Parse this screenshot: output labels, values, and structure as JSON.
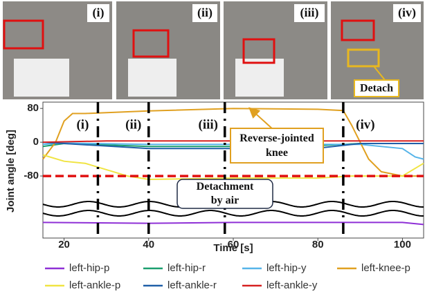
{
  "photos": {
    "labels": [
      "(i)",
      "(ii)",
      "(iii)",
      "(iv)"
    ],
    "callout": "Detach"
  },
  "chart_data": {
    "type": "line",
    "xlabel": "Time [s]",
    "ylabel": "Joint angle [deg]",
    "xlim": [
      15,
      105
    ],
    "ylim": [
      -227,
      95
    ],
    "xticks": [
      20,
      40,
      60,
      80,
      100
    ],
    "yticks": [
      80,
      0,
      -80
    ],
    "threshold": -80,
    "phase_markers": {
      "x": [
        28,
        40,
        58,
        86
      ],
      "labels": [
        "(i)",
        "(ii)",
        "(iii)",
        "(iv)"
      ]
    },
    "annotations": [
      "Reverse-jointed knee",
      "Detachment by air"
    ],
    "series": [
      {
        "name": "left-hip-p",
        "color": "#8e2fd6",
        "x": [
          15,
          40,
          60,
          100,
          105
        ],
        "values": [
          -190,
          -192,
          -190,
          -190,
          -195
        ]
      },
      {
        "name": "left-hip-r",
        "color": "#1a9e6e",
        "x": [
          15,
          20,
          40,
          60,
          80,
          90,
          105
        ],
        "values": [
          -10,
          -3,
          -10,
          -10,
          -8,
          -3,
          -3
        ]
      },
      {
        "name": "left-hip-y",
        "color": "#56b4e9",
        "x": [
          15,
          20,
          40,
          60,
          80,
          90,
          100,
          103,
          105
        ],
        "values": [
          -5,
          -2,
          -5,
          -5,
          -5,
          -5,
          -15,
          -35,
          -40
        ]
      },
      {
        "name": "left-knee-p",
        "color": "#e0a020",
        "x": [
          15,
          18,
          20,
          22,
          25,
          40,
          60,
          80,
          86,
          88,
          90,
          92,
          95,
          100,
          105
        ],
        "values": [
          -40,
          0,
          50,
          68,
          68,
          74,
          80,
          78,
          75,
          40,
          0,
          -40,
          -70,
          -80,
          -80
        ]
      },
      {
        "name": "left-ankle-p",
        "color": "#f0e442",
        "x": [
          15,
          20,
          25,
          35,
          40,
          60,
          80,
          88,
          100,
          105
        ],
        "values": [
          -30,
          -45,
          -50,
          -80,
          -88,
          -85,
          -85,
          -80,
          -80,
          -50
        ]
      },
      {
        "name": "left-ankle-r",
        "color": "#1f5fa8",
        "x": [
          15,
          20,
          40,
          60,
          80,
          90,
          105
        ],
        "values": [
          0,
          -3,
          -15,
          -15,
          -14,
          -3,
          -3
        ]
      },
      {
        "name": "left-ankle-y",
        "color": "#d62020",
        "x": [
          15,
          30,
          105
        ],
        "values": [
          0,
          3,
          3
        ]
      }
    ]
  }
}
